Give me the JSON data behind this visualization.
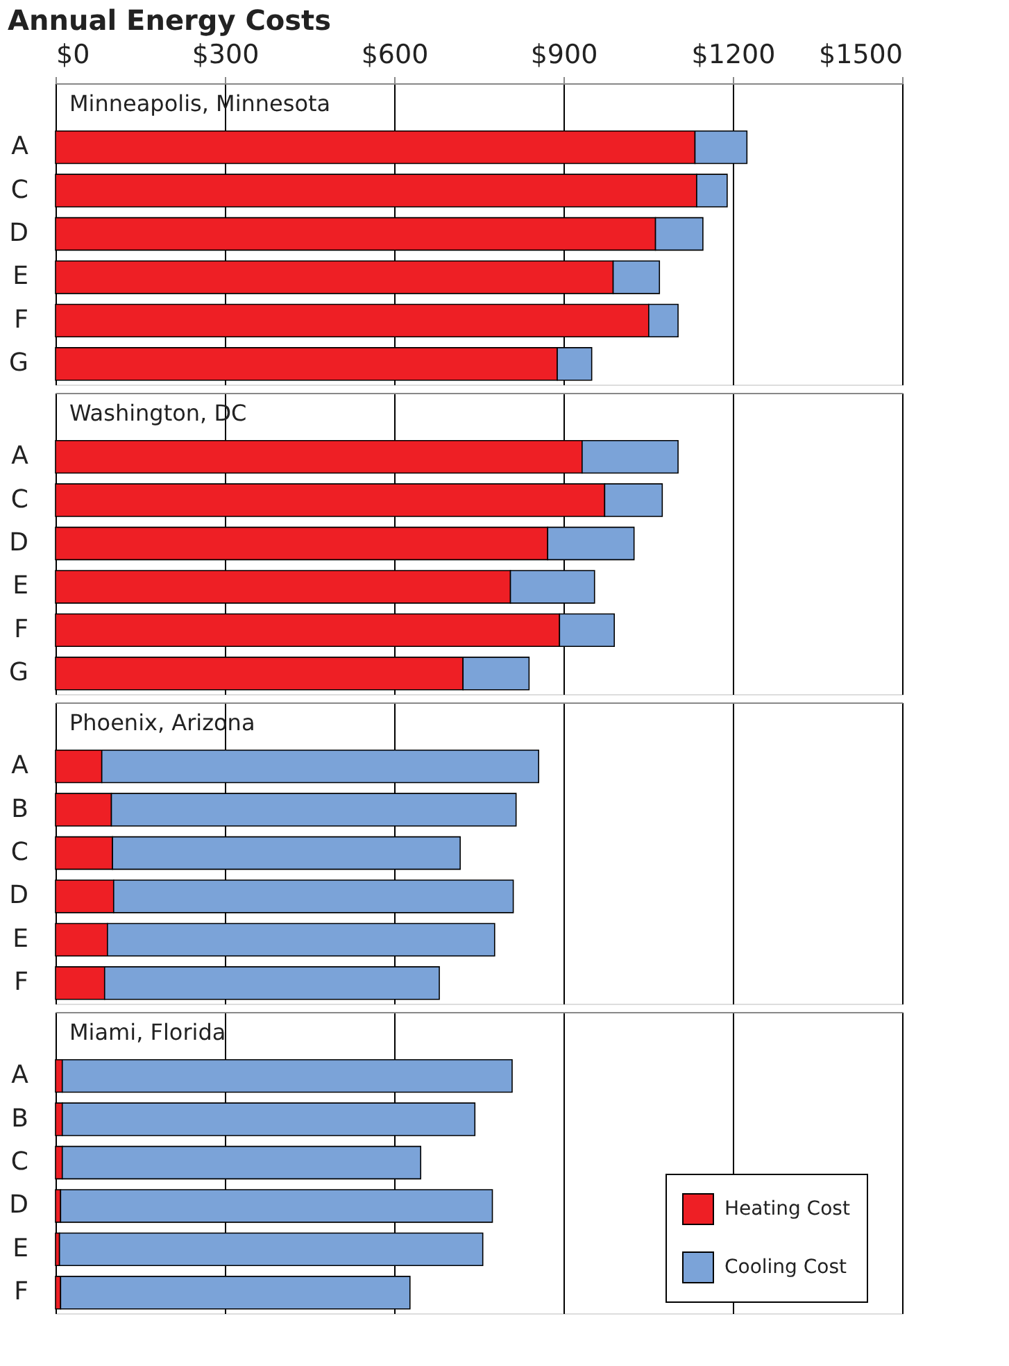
{
  "chart_data": [
    {
      "type": "bar",
      "title": "Annual Energy Costs",
      "subtitle": "Minneapolis, Minnesota",
      "orientation": "horizontal",
      "stacked": true,
      "categories": [
        "A",
        "C",
        "D",
        "E",
        "F",
        "G"
      ],
      "series": [
        {
          "color": "#ee1f25",
          "values": [
            1133,
            1136,
            1063,
            988,
            1051,
            889
          ]
        },
        {
          "color": "#7ba3d8",
          "values": [
            92,
            54,
            84,
            82,
            52,
            61
          ]
        }
      ],
      "xlim": [
        0,
        1500
      ],
      "xticks": [
        {
          "value": 0,
          "label": "$0"
        },
        {
          "value": 300,
          "label": "$300"
        },
        {
          "value": 600,
          "label": "$600"
        },
        {
          "value": 900,
          "label": "$900"
        },
        {
          "value": 1200,
          "label": "$1200"
        },
        {
          "value": 1500,
          "label": "$1500"
        }
      ],
      "grid": "x",
      "legend": false
    },
    {
      "type": "bar",
      "subtitle": "Washington, DC",
      "orientation": "horizontal",
      "stacked": true,
      "categories": [
        "A",
        "C",
        "D",
        "E",
        "F",
        "G"
      ],
      "series": [
        {
          "color": "#ee1f25",
          "values": [
            933,
            973,
            872,
            806,
            893,
            722
          ]
        },
        {
          "color": "#7ba3d8",
          "values": [
            170,
            102,
            153,
            149,
            97,
            117
          ]
        }
      ],
      "xlim": [
        0,
        1500
      ],
      "xticks": [
        0,
        300,
        600,
        900,
        1200,
        1500
      ],
      "grid": "x",
      "legend": false,
      "tick_labels": "y"
    },
    {
      "type": "bar",
      "subtitle": "Phoenix, Arizona",
      "orientation": "horizontal",
      "stacked": true,
      "categories": [
        "A",
        "B",
        "C",
        "D",
        "E",
        "F"
      ],
      "series": [
        {
          "color": "#ee1f25",
          "values": [
            82,
            99,
            101,
            103,
            92,
            87
          ]
        },
        {
          "color": "#7ba3d8",
          "values": [
            774,
            717,
            616,
            708,
            686,
            593
          ]
        }
      ],
      "xlim": [
        0,
        1500
      ],
      "xticks": [
        0,
        300,
        600,
        900,
        1200,
        1500
      ],
      "grid": "x",
      "legend": false,
      "tick_labels": "y"
    },
    {
      "type": "bar",
      "subtitle": "Miami, Florida",
      "orientation": "horizontal",
      "stacked": true,
      "categories": [
        "A",
        "B",
        "C",
        "D",
        "E",
        "F"
      ],
      "series": [
        {
          "name": "Heating Cost",
          "color": "#ee1f25",
          "values": [
            12,
            12,
            12,
            9,
            7,
            9
          ]
        },
        {
          "name": "Cooling Cost",
          "color": "#7ba3d8",
          "values": [
            797,
            731,
            635,
            765,
            750,
            619
          ]
        }
      ],
      "xlim": [
        0,
        1500
      ],
      "xticks": [
        0,
        300,
        600,
        900,
        1200,
        1500
      ],
      "grid": "x",
      "legend": "bottom right",
      "tick_labels": "y"
    }
  ]
}
